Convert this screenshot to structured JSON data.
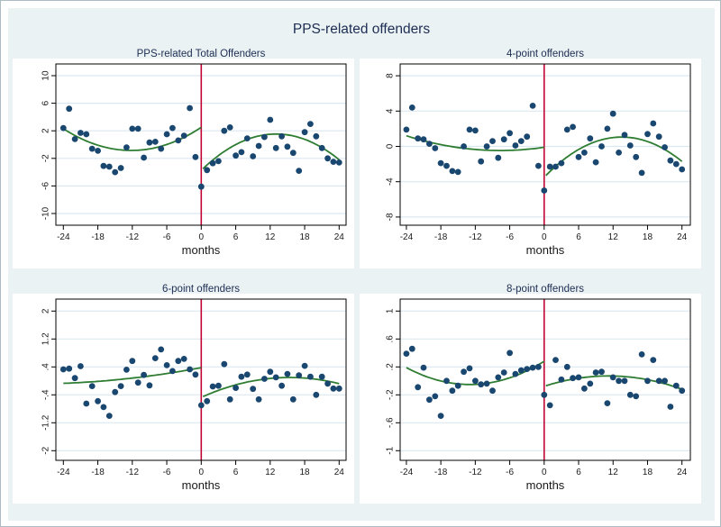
{
  "figure": {
    "title": "PPS-related offenders"
  },
  "chart_data": {
    "type": "scatter",
    "title": "PPS-related offenders",
    "xlabel": "months",
    "cutoff_x": 0,
    "grid": true,
    "legend_position": "none",
    "x_ticks": [
      -24,
      -18,
      -12,
      -6,
      0,
      6,
      12,
      18,
      24
    ],
    "xlim": [
      -25.3,
      25.5
    ],
    "months": [
      -24,
      -23,
      -22,
      -21,
      -20,
      -19,
      -18,
      -17,
      -16,
      -15,
      -14,
      -13,
      -12,
      -11,
      -10,
      -9,
      -8,
      -7,
      -6,
      -5,
      -4,
      -3,
      -2,
      -1,
      0,
      1,
      2,
      3,
      4,
      5,
      6,
      7,
      8,
      9,
      10,
      11,
      12,
      13,
      14,
      15,
      16,
      17,
      18,
      19,
      20,
      21,
      22,
      23,
      24
    ],
    "colors": {
      "dot": "#1a476f",
      "fit_line": "#2e7d32",
      "cutoff_line": "#c10534",
      "canvas_background": "#eaf2f3",
      "plot_background": "#ffffff",
      "gridline": "#dce8f0",
      "frame": "#000000",
      "title_text": "#1e2d53",
      "tick_text": "#1a1a1a"
    },
    "panels": [
      {
        "title": "PPS-related Total Offenders",
        "ylim": [
          -11.7,
          11.7
        ],
        "yticks": [
          {
            "label": "10",
            "value": 10
          },
          {
            "label": "6",
            "value": 6
          },
          {
            "label": "2",
            "value": 2
          },
          {
            "label": "-2",
            "value": -2
          },
          {
            "label": "-6",
            "value": -6
          },
          {
            "label": "-10",
            "value": -10
          }
        ],
        "values": [
          2.4,
          5.2,
          0.8,
          1.7,
          1.5,
          -0.6,
          -0.9,
          -3.1,
          -3.2,
          -4.0,
          -3.4,
          -0.4,
          2.3,
          2.3,
          -1.9,
          0.3,
          0.4,
          -0.6,
          1.5,
          2.4,
          0.6,
          1.3,
          5.3,
          -1.8,
          -6.1,
          -3.7,
          -2.7,
          -2.4,
          2.0,
          2.5,
          -1.6,
          -1.1,
          0.9,
          -1.7,
          -0.2,
          1.1,
          3.6,
          -0.5,
          1.2,
          -0.3,
          -1.2,
          -3.8,
          1.8,
          3.0,
          1.2,
          -0.5,
          -2.0,
          -2.5,
          -2.6
        ],
        "fit_left": {
          "x": [
            -24,
            -12,
            0
          ],
          "y": [
            2.3,
            -0.85,
            2.5
          ]
        },
        "fit_right": {
          "x": [
            0.3,
            12,
            24
          ],
          "y": [
            -3.5,
            1.5,
            -2.2
          ]
        }
      },
      {
        "title": "4-point offenders",
        "ylim": [
          -9.35,
          9.35
        ],
        "yticks": [
          {
            "label": "8",
            "value": 8
          },
          {
            "label": "4",
            "value": 4
          },
          {
            "label": "0",
            "value": 0
          },
          {
            "label": "-4",
            "value": -4
          },
          {
            "label": "-8",
            "value": -8
          }
        ],
        "values": [
          1.9,
          4.4,
          0.9,
          0.8,
          0.3,
          -0.2,
          -1.9,
          -2.2,
          -2.8,
          -2.9,
          0.0,
          1.9,
          1.8,
          -1.7,
          0.0,
          0.6,
          -1.3,
          0.8,
          1.5,
          0.1,
          0.6,
          1.1,
          4.6,
          -2.2,
          -5.0,
          -2.3,
          -2.3,
          -1.9,
          1.9,
          2.2,
          -1.2,
          -0.7,
          0.9,
          -1.8,
          0.0,
          2.0,
          3.7,
          -0.7,
          1.3,
          0.1,
          -1.2,
          -3.0,
          1.4,
          2.6,
          1.1,
          -0.1,
          -1.6,
          -2.0,
          -2.6
        ],
        "fit_left": {
          "x": [
            -24,
            -12,
            0
          ],
          "y": [
            1.2,
            -0.35,
            -0.1
          ]
        },
        "fit_right": {
          "x": [
            0.3,
            12,
            24
          ],
          "y": [
            -3.3,
            1.0,
            -1.7
          ]
        }
      },
      {
        "title": "6-point offenders",
        "ylim": [
          -2.31,
          2.34
        ],
        "yticks": [
          {
            "label": "2",
            "value": 2
          },
          {
            "label": "1.2",
            "value": 1.2
          },
          {
            "label": ".4",
            "value": 0.4
          },
          {
            "label": "-.4",
            "value": -0.4
          },
          {
            "label": "-1.2",
            "value": -1.2
          },
          {
            "label": "-2",
            "value": -2
          }
        ],
        "values": [
          0.33,
          0.35,
          0.08,
          0.42,
          -0.65,
          -0.15,
          -0.58,
          -0.75,
          -1.0,
          -0.32,
          -0.15,
          0.32,
          0.57,
          -0.05,
          0.17,
          -0.13,
          0.65,
          0.9,
          0.45,
          0.28,
          0.57,
          0.63,
          0.33,
          0.18,
          -0.7,
          -0.58,
          -0.16,
          -0.14,
          0.48,
          -0.53,
          -0.2,
          0.12,
          0.18,
          -0.23,
          -0.53,
          0.06,
          0.26,
          0.1,
          -0.14,
          0.2,
          -0.53,
          0.16,
          0.43,
          0.12,
          -0.4,
          0.12,
          -0.08,
          -0.22,
          -0.22
        ],
        "fit_left": {
          "x": [
            -24,
            -12,
            0
          ],
          "y": [
            -0.07,
            0.08,
            0.38
          ]
        },
        "fit_right": {
          "x": [
            0.3,
            12,
            24
          ],
          "y": [
            -0.45,
            0.07,
            -0.08
          ]
        }
      },
      {
        "title": "8-point offenders",
        "ylim": [
          -1.17,
          1.17
        ],
        "yticks": [
          {
            "label": "1",
            "value": 1
          },
          {
            "label": ".6",
            "value": 0.6
          },
          {
            "label": ".2",
            "value": 0.2
          },
          {
            "label": "-.2",
            "value": -0.2
          },
          {
            "label": "-.6",
            "value": -0.6
          },
          {
            "label": "-1",
            "value": -1
          }
        ],
        "values": [
          0.39,
          0.46,
          -0.09,
          0.19,
          -0.27,
          -0.22,
          -0.5,
          0.0,
          -0.14,
          -0.07,
          0.13,
          0.18,
          0.0,
          -0.05,
          -0.04,
          -0.14,
          0.05,
          0.12,
          0.4,
          0.1,
          0.15,
          0.17,
          0.19,
          0.2,
          -0.2,
          -0.35,
          0.3,
          0.02,
          0.2,
          0.04,
          0.05,
          -0.11,
          -0.04,
          0.12,
          0.13,
          -0.32,
          0.05,
          0.0,
          0.0,
          -0.2,
          -0.22,
          0.38,
          0.0,
          0.3,
          0.0,
          0.0,
          -0.37,
          -0.07,
          -0.14
        ],
        "fit_left": {
          "x": [
            -24,
            -12,
            0
          ],
          "y": [
            0.19,
            -0.05,
            0.28
          ]
        },
        "fit_right": {
          "x": [
            0.3,
            12,
            24
          ],
          "y": [
            -0.07,
            0.07,
            -0.12
          ]
        }
      }
    ]
  }
}
